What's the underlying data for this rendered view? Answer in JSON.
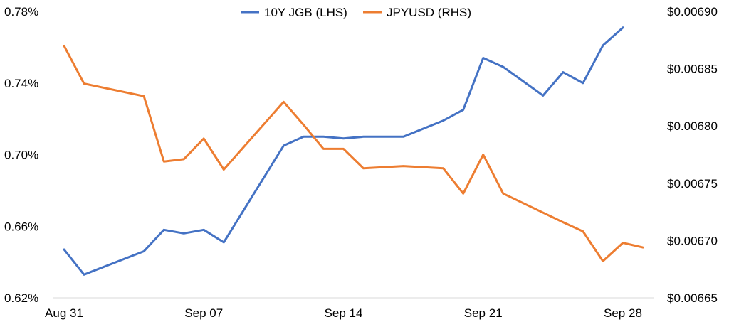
{
  "chart_data": {
    "type": "line",
    "title": "",
    "x": [
      "Aug 31",
      "Sep 01",
      "Sep 02",
      "Sep 03",
      "Sep 04",
      "Sep 05",
      "Sep 06",
      "Sep 07",
      "Sep 08",
      "Sep 09",
      "Sep 10",
      "Sep 11",
      "Sep 12",
      "Sep 13",
      "Sep 14",
      "Sep 15",
      "Sep 16",
      "Sep 17",
      "Sep 18",
      "Sep 19",
      "Sep 20",
      "Sep 21",
      "Sep 22",
      "Sep 23",
      "Sep 24",
      "Sep 25",
      "Sep 26",
      "Sep 27",
      "Sep 28",
      "Sep 29"
    ],
    "x_tick_labels": [
      "Aug 31",
      "Sep 07",
      "Sep 14",
      "Sep 21",
      "Sep 28"
    ],
    "series": [
      {
        "name": "10Y JGB (LHS)",
        "axis": "left",
        "color": "#4472C4",
        "values": [
          0.647,
          0.633,
          null,
          null,
          0.646,
          0.658,
          0.656,
          0.658,
          0.651,
          null,
          null,
          0.705,
          0.71,
          0.71,
          0.709,
          0.71,
          null,
          0.71,
          null,
          0.719,
          0.725,
          0.754,
          0.749,
          null,
          0.733,
          0.746,
          0.74,
          0.761,
          0.771,
          null
        ]
      },
      {
        "name": "JPYUSD (RHS)",
        "axis": "right",
        "color": "#ED7D31",
        "values": [
          0.00687,
          0.006837,
          null,
          null,
          0.006826,
          0.006769,
          0.006771,
          0.006789,
          0.006762,
          null,
          null,
          0.006821,
          0.006801,
          0.00678,
          0.00678,
          0.006763,
          null,
          0.006765,
          null,
          0.006763,
          0.006741,
          0.006775,
          0.006741,
          null,
          null,
          0.006716,
          0.006708,
          0.006682,
          0.006698,
          0.006694
        ]
      }
    ],
    "y_left": {
      "ylim": [
        0.62,
        0.78
      ],
      "ticks": [
        "0.62%",
        "0.66%",
        "0.70%",
        "0.74%",
        "0.78%"
      ]
    },
    "y_right": {
      "ylim": [
        0.00665,
        0.0069
      ],
      "ticks": [
        "$0.00665",
        "$0.00670",
        "$0.00675",
        "$0.00680",
        "$0.00685",
        "$0.00690"
      ]
    },
    "grid": false,
    "legend_position": "top-center"
  }
}
